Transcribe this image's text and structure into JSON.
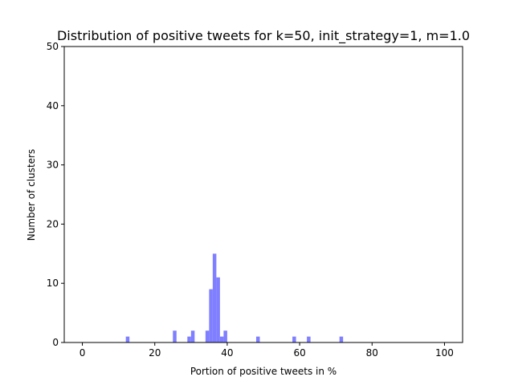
{
  "chart_data": {
    "type": "bar",
    "title": "Distribution of positive tweets for k=50, init_strategy=1, m=1.0",
    "xlabel": "Portion of positive tweets in %",
    "ylabel": "Number of clusters",
    "xlim": [
      -5,
      105
    ],
    "ylim": [
      0,
      50
    ],
    "xticks": [
      0,
      20,
      40,
      60,
      80,
      100
    ],
    "yticks": [
      0,
      10,
      20,
      30,
      40,
      50
    ],
    "bin_width": 1,
    "grid": false,
    "bar_color": "#7f7fff",
    "bins": [
      {
        "x": 12,
        "count": 1
      },
      {
        "x": 25,
        "count": 2
      },
      {
        "x": 29,
        "count": 1
      },
      {
        "x": 30,
        "count": 2
      },
      {
        "x": 34,
        "count": 2
      },
      {
        "x": 35,
        "count": 9
      },
      {
        "x": 36,
        "count": 15
      },
      {
        "x": 37,
        "count": 11
      },
      {
        "x": 38,
        "count": 1
      },
      {
        "x": 39,
        "count": 2
      },
      {
        "x": 48,
        "count": 1
      },
      {
        "x": 58,
        "count": 1
      },
      {
        "x": 62,
        "count": 1
      },
      {
        "x": 71,
        "count": 1
      }
    ]
  }
}
